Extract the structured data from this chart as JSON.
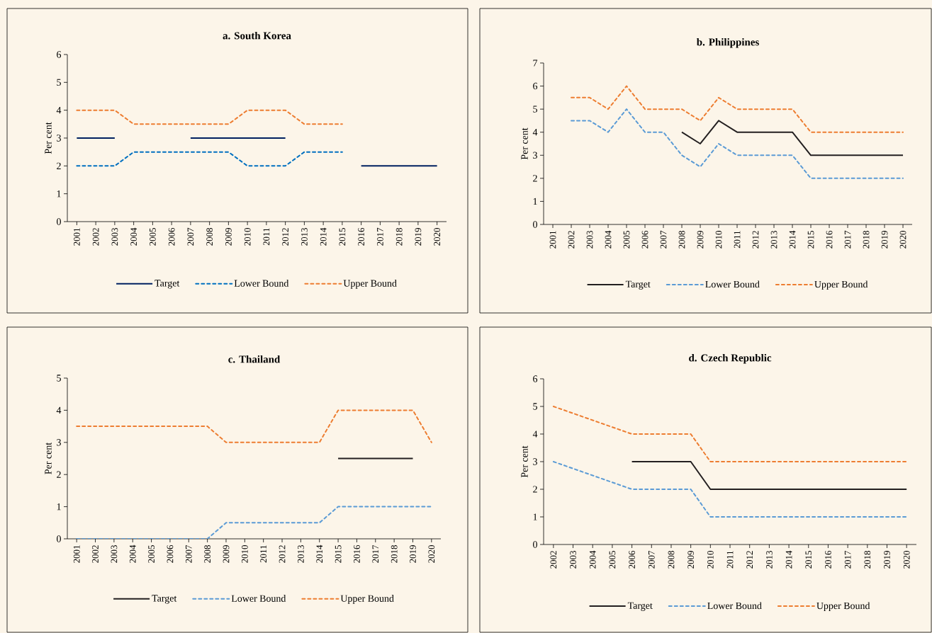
{
  "chart_data": [
    {
      "type": "line",
      "title": "a. South Korea",
      "ylabel": "Per cent",
      "categories": [
        "2001",
        "2002",
        "2003",
        "2004",
        "2005",
        "2006",
        "2007",
        "2008",
        "2009",
        "2010",
        "2011",
        "2012",
        "2013",
        "2014",
        "2015",
        "2016",
        "2017",
        "2018",
        "2019",
        "2020"
      ],
      "ylim": [
        0,
        6
      ],
      "yticks": [
        0,
        1,
        2,
        3,
        4,
        5,
        6
      ],
      "legend": "bottom",
      "series": [
        {
          "name": "Target",
          "color": "#002060",
          "line_style": "solid",
          "values": [
            3,
            3,
            3,
            null,
            null,
            null,
            3,
            3,
            3,
            3,
            3,
            3,
            null,
            null,
            null,
            2,
            2,
            2,
            2,
            2
          ]
        },
        {
          "name": "Lower Bound",
          "color": "#0070c0",
          "line_style": "dashed",
          "values": [
            2,
            2,
            2,
            2.5,
            2.5,
            2.5,
            2.5,
            2.5,
            2.5,
            2,
            2,
            2,
            2.5,
            2.5,
            2.5,
            null,
            null,
            null,
            null,
            null
          ]
        },
        {
          "name": "Upper Bound",
          "color": "#ed7d31",
          "line_style": "dashed",
          "values": [
            4,
            4,
            4,
            3.5,
            3.5,
            3.5,
            3.5,
            3.5,
            3.5,
            4,
            4,
            4,
            3.5,
            3.5,
            3.5,
            null,
            null,
            null,
            null,
            null
          ]
        }
      ]
    },
    {
      "type": "line",
      "title": "b. Philippines",
      "ylabel": "Per cent",
      "categories": [
        "2001",
        "2002",
        "2003",
        "2004",
        "2005",
        "2006",
        "2007",
        "2008",
        "2009",
        "2010",
        "2011",
        "2012",
        "2013",
        "2014",
        "2015",
        "2016",
        "2017",
        "2018",
        "2019",
        "2020"
      ],
      "ylim": [
        0,
        7
      ],
      "yticks": [
        0,
        1,
        2,
        3,
        4,
        5,
        6,
        7
      ],
      "legend": "bottom",
      "series": [
        {
          "name": "Target",
          "color": "#231f20",
          "line_style": "solid",
          "values": [
            null,
            null,
            null,
            null,
            null,
            null,
            null,
            4,
            3.5,
            4.5,
            4,
            4,
            4,
            4,
            3,
            3,
            3,
            3,
            3,
            3
          ]
        },
        {
          "name": "Lower Bound",
          "color": "#5b9bd5",
          "line_style": "dashed",
          "values": [
            null,
            4.5,
            4.5,
            4,
            5,
            4,
            4,
            3,
            2.5,
            3.5,
            3,
            3,
            3,
            3,
            2,
            2,
            2,
            2,
            2,
            2
          ]
        },
        {
          "name": "Upper Bound",
          "color": "#ed7d31",
          "line_style": "dashed",
          "values": [
            null,
            5.5,
            5.5,
            5,
            6,
            5,
            5,
            5,
            4.5,
            5.5,
            5,
            5,
            5,
            5,
            4,
            4,
            4,
            4,
            4,
            4
          ]
        }
      ]
    },
    {
      "type": "line",
      "title": "c. Thailand",
      "ylabel": "Per cent",
      "categories": [
        "2001",
        "2002",
        "2003",
        "2004",
        "2005",
        "2006",
        "2007",
        "2008",
        "2009",
        "2010",
        "2011",
        "2012",
        "2013",
        "2014",
        "2015",
        "2016",
        "2017",
        "2018",
        "2019",
        "2020"
      ],
      "ylim": [
        0,
        5
      ],
      "yticks": [
        0,
        1,
        2,
        3,
        4,
        5
      ],
      "legend": "bottom",
      "series": [
        {
          "name": "Target",
          "color": "#231f20",
          "line_style": "solid",
          "values": [
            null,
            null,
            null,
            null,
            null,
            null,
            null,
            null,
            null,
            null,
            null,
            null,
            null,
            null,
            2.5,
            2.5,
            2.5,
            2.5,
            2.5,
            null
          ]
        },
        {
          "name": "Lower Bound",
          "color": "#5b9bd5",
          "line_style": "dashed",
          "values": [
            0,
            0,
            0,
            0,
            0,
            0,
            0,
            0,
            0.5,
            0.5,
            0.5,
            0.5,
            0.5,
            0.5,
            1,
            1,
            1,
            1,
            1,
            1
          ]
        },
        {
          "name": "Upper Bound",
          "color": "#ed7d31",
          "line_style": "dashed",
          "values": [
            3.5,
            3.5,
            3.5,
            3.5,
            3.5,
            3.5,
            3.5,
            3.5,
            3,
            3,
            3,
            3,
            3,
            3,
            4,
            4,
            4,
            4,
            4,
            3
          ]
        }
      ]
    },
    {
      "type": "line",
      "title": "d. Czech Republic",
      "ylabel": "Per cent",
      "categories": [
        "2002",
        "2003",
        "2004",
        "2005",
        "2006",
        "2007",
        "2008",
        "2009",
        "2010",
        "2011",
        "2012",
        "2013",
        "2014",
        "2015",
        "2016",
        "2017",
        "2018",
        "2019",
        "2020"
      ],
      "ylim": [
        0,
        6
      ],
      "yticks": [
        0,
        1,
        2,
        3,
        4,
        5,
        6
      ],
      "legend": "bottom",
      "series": [
        {
          "name": "Target",
          "color": "#231f20",
          "line_style": "solid",
          "values": [
            null,
            null,
            null,
            null,
            3,
            3,
            3,
            3,
            2,
            2,
            2,
            2,
            2,
            2,
            2,
            2,
            2,
            2,
            2
          ]
        },
        {
          "name": "Lower Bound",
          "color": "#5b9bd5",
          "line_style": "dashed",
          "values": [
            3,
            2.75,
            2.5,
            2.25,
            2,
            2,
            2,
            2,
            1,
            1,
            1,
            1,
            1,
            1,
            1,
            1,
            1,
            1,
            1
          ]
        },
        {
          "name": "Upper Bound",
          "color": "#ed7d31",
          "line_style": "dashed",
          "values": [
            5,
            4.75,
            4.5,
            4.25,
            4,
            4,
            4,
            4,
            3,
            3,
            3,
            3,
            3,
            3,
            3,
            3,
            3,
            3,
            3
          ]
        }
      ]
    }
  ]
}
